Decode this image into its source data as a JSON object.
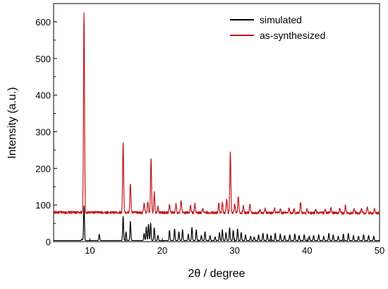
{
  "chart_data": {
    "type": "line",
    "title": "",
    "xlabel": "2θ / degree",
    "ylabel": "Intensity (a.u.)",
    "xlim": [
      5,
      50
    ],
    "ylim": [
      0,
      650
    ],
    "xticks": [
      10,
      20,
      30,
      40,
      50
    ],
    "yticks": [
      0,
      100,
      200,
      300,
      400,
      500,
      600
    ],
    "grid": false,
    "legend_position": "top-right",
    "series": [
      {
        "name": "simulated",
        "color": "#000000",
        "baseline": 3,
        "peaks": [
          [
            8.9,
            4
          ],
          [
            9.2,
            95
          ],
          [
            11.3,
            17
          ],
          [
            14.6,
            66
          ],
          [
            15.0,
            24
          ],
          [
            15.6,
            53
          ],
          [
            17.5,
            20
          ],
          [
            17.8,
            38
          ],
          [
            18.1,
            45
          ],
          [
            18.4,
            48
          ],
          [
            18.9,
            35
          ],
          [
            19.4,
            14
          ],
          [
            21.0,
            28
          ],
          [
            21.7,
            32
          ],
          [
            22.3,
            24
          ],
          [
            22.8,
            30
          ],
          [
            23.6,
            18
          ],
          [
            24.1,
            36
          ],
          [
            24.7,
            30
          ],
          [
            25.4,
            14
          ],
          [
            25.9,
            24
          ],
          [
            26.6,
            14
          ],
          [
            27.3,
            10
          ],
          [
            27.9,
            22
          ],
          [
            28.3,
            30
          ],
          [
            28.8,
            22
          ],
          [
            29.3,
            35
          ],
          [
            29.8,
            28
          ],
          [
            30.4,
            32
          ],
          [
            30.9,
            22
          ],
          [
            31.5,
            16
          ],
          [
            32.2,
            12
          ],
          [
            32.7,
            10
          ],
          [
            33.3,
            16
          ],
          [
            33.9,
            20
          ],
          [
            34.5,
            18
          ],
          [
            35.0,
            14
          ],
          [
            35.6,
            20
          ],
          [
            36.3,
            18
          ],
          [
            36.9,
            14
          ],
          [
            37.6,
            16
          ],
          [
            38.3,
            18
          ],
          [
            38.9,
            14
          ],
          [
            39.6,
            16
          ],
          [
            40.3,
            12
          ],
          [
            40.9,
            14
          ],
          [
            41.6,
            16
          ],
          [
            42.3,
            12
          ],
          [
            43.0,
            20
          ],
          [
            43.6,
            16
          ],
          [
            44.3,
            12
          ],
          [
            45.0,
            18
          ],
          [
            45.7,
            20
          ],
          [
            46.4,
            14
          ],
          [
            47.1,
            12
          ],
          [
            47.8,
            16
          ],
          [
            48.5,
            14
          ],
          [
            49.2,
            12
          ]
        ]
      },
      {
        "name": "as-synthesized",
        "color": "#c0171c",
        "baseline": 80,
        "peaks": [
          [
            9.2,
            545
          ],
          [
            14.6,
            193
          ],
          [
            15.6,
            80
          ],
          [
            17.5,
            25
          ],
          [
            18.0,
            28
          ],
          [
            18.45,
            150
          ],
          [
            18.9,
            55
          ],
          [
            19.4,
            15
          ],
          [
            21.0,
            22
          ],
          [
            21.9,
            24
          ],
          [
            22.6,
            32
          ],
          [
            23.9,
            20
          ],
          [
            24.5,
            24
          ],
          [
            25.6,
            10
          ],
          [
            27.8,
            25
          ],
          [
            28.3,
            30
          ],
          [
            28.9,
            38
          ],
          [
            29.4,
            165
          ],
          [
            30.0,
            25
          ],
          [
            30.5,
            45
          ],
          [
            31.2,
            20
          ],
          [
            32.1,
            25
          ],
          [
            33.5,
            10
          ],
          [
            34.2,
            12
          ],
          [
            35.5,
            12
          ],
          [
            36.3,
            10
          ],
          [
            37.5,
            12
          ],
          [
            38.2,
            10
          ],
          [
            39.1,
            30
          ],
          [
            40.0,
            10
          ],
          [
            41.2,
            10
          ],
          [
            42.5,
            10
          ],
          [
            43.3,
            14
          ],
          [
            44.5,
            12
          ],
          [
            45.3,
            20
          ],
          [
            46.5,
            12
          ],
          [
            47.5,
            10
          ],
          [
            48.3,
            16
          ],
          [
            49.3,
            10
          ]
        ]
      }
    ]
  }
}
